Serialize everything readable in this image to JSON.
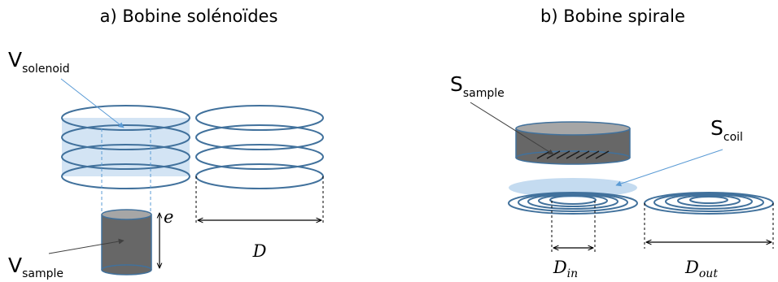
{
  "panel_a": {
    "title": "a) Bobine solénoïdes",
    "v_solenoid": {
      "main": "V",
      "sub": "solenoid"
    },
    "v_sample": {
      "main": "V",
      "sub": "sample"
    },
    "thickness_symbol": "e",
    "diameter_symbol": "D"
  },
  "panel_b": {
    "title": "b) Bobine spirale",
    "s_sample": {
      "main": "S",
      "sub": "sample"
    },
    "s_coil": {
      "main": "S",
      "sub": "coil"
    },
    "d_in": {
      "main": "D",
      "sub": "in"
    },
    "d_out": {
      "main": "D",
      "sub": "out"
    }
  },
  "colors": {
    "coil_stroke": "#41719c",
    "volume_fill": "#9dc3e6",
    "sample_body": "#676767",
    "sample_top": "#a6a6a6",
    "pointer_blue": "#5b9bd5"
  }
}
